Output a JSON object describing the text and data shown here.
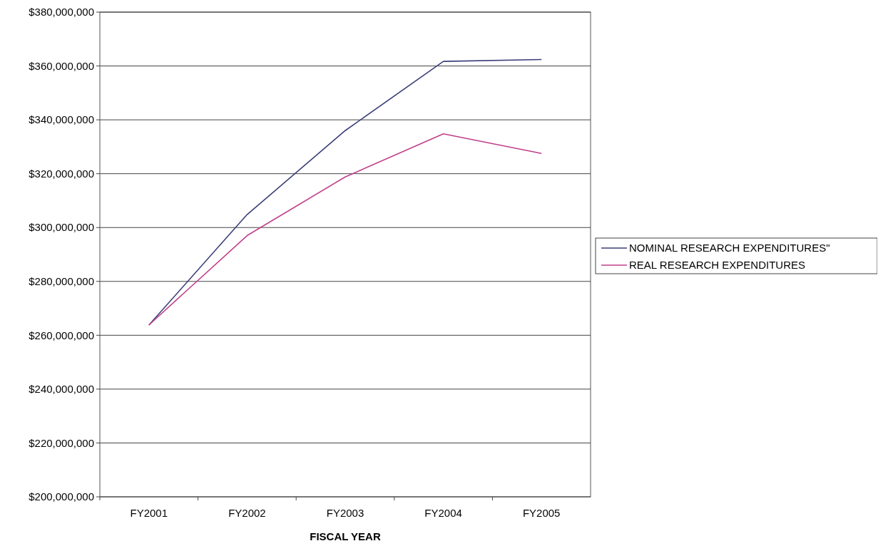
{
  "chart_data": {
    "type": "line",
    "xlabel": "FISCAL YEAR",
    "categories": [
      "FY2001",
      "FY2002",
      "FY2003",
      "FY2004",
      "FY2005"
    ],
    "series": [
      {
        "name": "NOMINAL RESEARCH EXPENDITURES\"",
        "color": "#3b3f78",
        "values": [
          263800000,
          304800000,
          336000000,
          361700000,
          362400000
        ]
      },
      {
        "name": "REAL RESEARCH EXPENDITURES",
        "color": "#c0408a",
        "values": [
          263800000,
          297000000,
          318800000,
          334800000,
          327500000
        ]
      }
    ],
    "ylim": [
      200000000,
      380000000
    ],
    "yticks": [
      {
        "value": 200000000,
        "label": "$200,000,000"
      },
      {
        "value": 220000000,
        "label": "$220,000,000"
      },
      {
        "value": 240000000,
        "label": "$240,000,000"
      },
      {
        "value": 260000000,
        "label": "$260,000,000"
      },
      {
        "value": 280000000,
        "label": "$280,000,000"
      },
      {
        "value": 300000000,
        "label": "$300,000,000"
      },
      {
        "value": 320000000,
        "label": "$320,000,000"
      },
      {
        "value": 340000000,
        "label": "$340,000,000"
      },
      {
        "value": 360000000,
        "label": "$360,000,000"
      },
      {
        "value": 380000000,
        "label": "$380,000,000"
      }
    ],
    "grid": "y",
    "legend": "right",
    "marker": "none",
    "line_style": "solid"
  }
}
